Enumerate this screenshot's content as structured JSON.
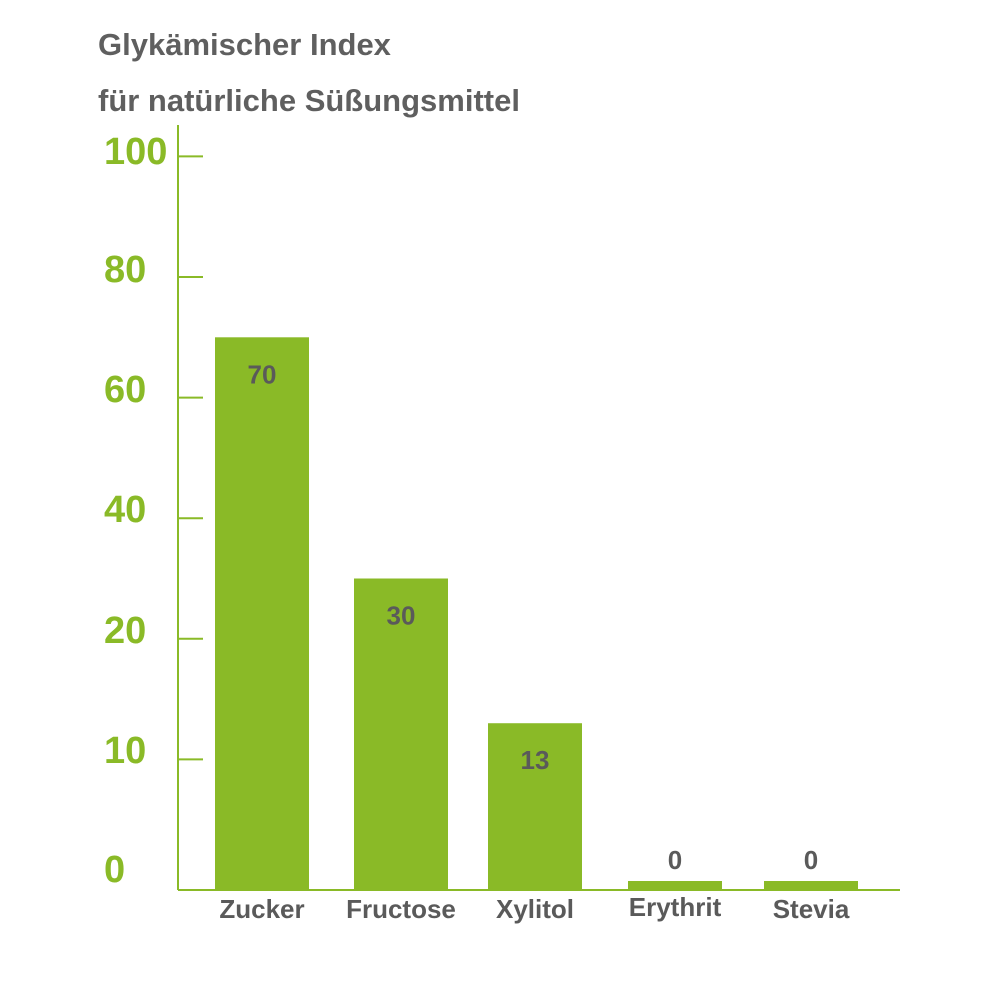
{
  "chart_data": {
    "type": "bar",
    "title": "Glykämischer Index",
    "subtitle": "für natürliche Süßungsmittel",
    "categories": [
      "Zucker",
      "Fructose",
      "Xylitol",
      "Erythrit",
      "Stevia"
    ],
    "values": [
      70,
      30,
      13,
      0,
      0
    ],
    "data_labels": [
      "70",
      "30",
      "13",
      "0",
      "0"
    ],
    "y_tick_labels": [
      "0",
      "10",
      "20",
      "40",
      "60",
      "80",
      "100"
    ],
    "xlabel": "",
    "ylabel": "",
    "legend": "none",
    "grid": false
  },
  "colors": {
    "bar": "#8aba27",
    "axis": "#8aba27",
    "tick_text": "#8aba27",
    "title_text": "#5f5f5f",
    "label_text": "#5a5a5a"
  }
}
